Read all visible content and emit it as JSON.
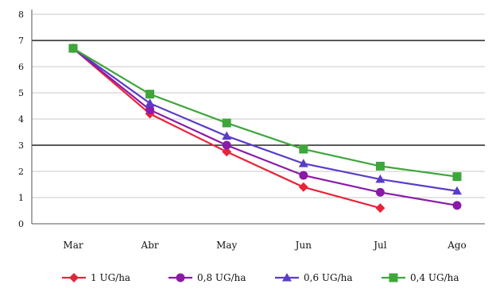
{
  "chart_data": {
    "type": "line",
    "title": "",
    "xlabel": "",
    "ylabel": "",
    "categories": [
      "Mar",
      "Abr",
      "May",
      "Jun",
      "Jul",
      "Ago"
    ],
    "ylim": [
      0,
      8
    ],
    "yticks": [
      0,
      1,
      2,
      3,
      4,
      5,
      6,
      7,
      8
    ],
    "grid": "horizontal",
    "bold_gridlines": [
      3,
      7
    ],
    "legend_position": "bottom",
    "series": [
      {
        "name": "1 UG/ha",
        "color": "#e8243a",
        "marker": "diamond",
        "values": [
          6.7,
          4.2,
          2.75,
          1.4,
          0.6,
          null
        ]
      },
      {
        "name": "0,8 UG/ha",
        "color": "#8b1aa8",
        "marker": "circle",
        "values": [
          6.7,
          4.35,
          3.0,
          1.85,
          1.2,
          0.7
        ]
      },
      {
        "name": "0,6 UG/ha",
        "color": "#5a3cc8",
        "marker": "triangle",
        "values": [
          6.7,
          4.6,
          3.35,
          2.3,
          1.7,
          1.25
        ]
      },
      {
        "name": "0,4 UG/ha",
        "color": "#3ea63a",
        "marker": "square",
        "values": [
          6.7,
          4.95,
          3.85,
          2.85,
          2.2,
          1.8
        ]
      }
    ]
  }
}
